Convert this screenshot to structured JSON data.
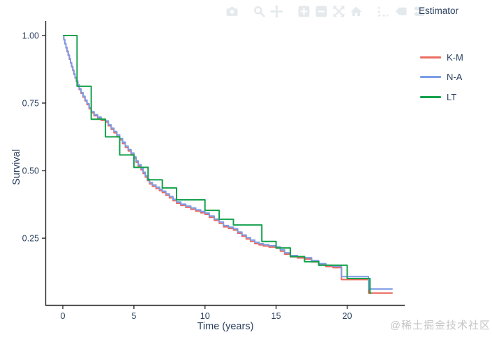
{
  "modebar": {
    "groups": [
      [
        "camera"
      ],
      [
        "magnifier",
        "pan"
      ],
      [
        "zoom-in",
        "zoom-out",
        "autoscale",
        "home"
      ],
      [
        "spikelines",
        "hover-closest",
        "hover-compare"
      ]
    ]
  },
  "legend": {
    "title": "Estimator",
    "items": [
      {
        "label": "K-M",
        "color": "#ec6a5e"
      },
      {
        "label": "N-A",
        "color": "#7d9ce6"
      },
      {
        "label": "LT",
        "color": "#12a14b"
      }
    ]
  },
  "watermark": "@稀土掘金技术社区",
  "chart_data": {
    "type": "line",
    "step_mode": "hv",
    "title": "",
    "xlabel": "Time (years)",
    "ylabel": "Survival",
    "legend_title": "Estimator",
    "grid": false,
    "legend_position": "right",
    "xlim": [
      -1.178,
      24.05
    ],
    "ylim": [
      0.003,
      1.054
    ],
    "xticks": [
      {
        "v": 0,
        "label": "0"
      },
      {
        "v": 5,
        "label": "5"
      },
      {
        "v": 10,
        "label": "10"
      },
      {
        "v": 15,
        "label": "15"
      },
      {
        "v": 20,
        "label": "20"
      }
    ],
    "yticks": [
      {
        "v": 0.25,
        "label": "0.25"
      },
      {
        "v": 0.5,
        "label": "0.50"
      },
      {
        "v": 0.75,
        "label": "0.75"
      },
      {
        "v": 1.0,
        "label": "1.00"
      }
    ],
    "series": [
      {
        "name": "K-M",
        "color": "#ec6a5e",
        "points": [
          [
            0,
            1.0
          ],
          [
            0.07,
            0.984
          ],
          [
            0.14,
            0.969
          ],
          [
            0.22,
            0.954
          ],
          [
            0.3,
            0.94
          ],
          [
            0.38,
            0.926
          ],
          [
            0.46,
            0.912
          ],
          [
            0.54,
            0.898
          ],
          [
            0.62,
            0.884
          ],
          [
            0.7,
            0.87
          ],
          [
            0.78,
            0.856
          ],
          [
            0.86,
            0.843
          ],
          [
            0.95,
            0.83
          ],
          [
            1.05,
            0.815
          ],
          [
            1.15,
            0.8
          ],
          [
            1.28,
            0.786
          ],
          [
            1.42,
            0.772
          ],
          [
            1.56,
            0.758
          ],
          [
            1.7,
            0.744
          ],
          [
            1.85,
            0.729
          ],
          [
            2.0,
            0.714
          ],
          [
            2.2,
            0.703
          ],
          [
            2.45,
            0.694
          ],
          [
            2.7,
            0.686
          ],
          [
            3.0,
            0.68
          ],
          [
            3.2,
            0.666
          ],
          [
            3.4,
            0.653
          ],
          [
            3.6,
            0.64
          ],
          [
            3.8,
            0.627
          ],
          [
            4.0,
            0.614
          ],
          [
            4.2,
            0.6
          ],
          [
            4.4,
            0.586
          ],
          [
            4.6,
            0.573
          ],
          [
            4.8,
            0.56
          ],
          [
            5.0,
            0.546
          ],
          [
            5.15,
            0.531
          ],
          [
            5.3,
            0.517
          ],
          [
            5.5,
            0.503
          ],
          [
            5.65,
            0.489
          ],
          [
            5.8,
            0.476
          ],
          [
            5.95,
            0.463
          ],
          [
            6.1,
            0.451
          ],
          [
            6.3,
            0.442
          ],
          [
            6.55,
            0.434
          ],
          [
            6.8,
            0.426
          ],
          [
            7.0,
            0.419
          ],
          [
            7.25,
            0.409
          ],
          [
            7.5,
            0.399
          ],
          [
            7.75,
            0.389
          ],
          [
            8.0,
            0.379
          ],
          [
            8.3,
            0.371
          ],
          [
            8.65,
            0.364
          ],
          [
            9.0,
            0.357
          ],
          [
            9.35,
            0.35
          ],
          [
            9.7,
            0.344
          ],
          [
            10.0,
            0.338
          ],
          [
            10.3,
            0.327
          ],
          [
            10.65,
            0.316
          ],
          [
            11.0,
            0.305
          ],
          [
            11.3,
            0.292
          ],
          [
            11.65,
            0.286
          ],
          [
            12.0,
            0.28
          ],
          [
            12.3,
            0.268
          ],
          [
            12.6,
            0.257
          ],
          [
            12.9,
            0.247
          ],
          [
            13.2,
            0.238
          ],
          [
            13.5,
            0.23
          ],
          [
            13.8,
            0.225
          ],
          [
            14.1,
            0.221
          ],
          [
            14.5,
            0.217
          ],
          [
            15.0,
            0.213
          ],
          [
            15.3,
            0.202
          ],
          [
            15.6,
            0.191
          ],
          [
            16.0,
            0.181
          ],
          [
            16.5,
            0.177
          ],
          [
            17.0,
            0.173
          ],
          [
            17.5,
            0.162
          ],
          [
            18.0,
            0.151
          ],
          [
            18.5,
            0.145
          ],
          [
            19.0,
            0.141
          ],
          [
            19.6,
            0.097
          ],
          [
            21.5,
            0.047
          ],
          [
            23.2,
            0.047
          ]
        ]
      },
      {
        "name": "N-A",
        "color": "#7d9ce6",
        "points": [
          [
            0,
            1.0
          ],
          [
            0.07,
            0.985
          ],
          [
            0.14,
            0.97
          ],
          [
            0.22,
            0.956
          ],
          [
            0.3,
            0.942
          ],
          [
            0.38,
            0.928
          ],
          [
            0.46,
            0.914
          ],
          [
            0.54,
            0.9
          ],
          [
            0.62,
            0.886
          ],
          [
            0.7,
            0.872
          ],
          [
            0.78,
            0.858
          ],
          [
            0.86,
            0.845
          ],
          [
            0.95,
            0.832
          ],
          [
            1.05,
            0.818
          ],
          [
            1.15,
            0.803
          ],
          [
            1.28,
            0.789
          ],
          [
            1.42,
            0.775
          ],
          [
            1.56,
            0.761
          ],
          [
            1.7,
            0.748
          ],
          [
            1.85,
            0.733
          ],
          [
            2.0,
            0.718
          ],
          [
            2.2,
            0.707
          ],
          [
            2.45,
            0.698
          ],
          [
            2.7,
            0.69
          ],
          [
            3.0,
            0.684
          ],
          [
            3.2,
            0.67
          ],
          [
            3.4,
            0.657
          ],
          [
            3.6,
            0.645
          ],
          [
            3.8,
            0.632
          ],
          [
            4.0,
            0.619
          ],
          [
            4.2,
            0.605
          ],
          [
            4.4,
            0.591
          ],
          [
            4.6,
            0.578
          ],
          [
            4.8,
            0.565
          ],
          [
            5.0,
            0.551
          ],
          [
            5.15,
            0.536
          ],
          [
            5.3,
            0.522
          ],
          [
            5.5,
            0.508
          ],
          [
            5.65,
            0.494
          ],
          [
            5.8,
            0.481
          ],
          [
            5.95,
            0.468
          ],
          [
            6.1,
            0.456
          ],
          [
            6.3,
            0.447
          ],
          [
            6.55,
            0.439
          ],
          [
            6.8,
            0.431
          ],
          [
            7.0,
            0.424
          ],
          [
            7.25,
            0.414
          ],
          [
            7.5,
            0.404
          ],
          [
            7.75,
            0.394
          ],
          [
            8.0,
            0.384
          ],
          [
            8.3,
            0.376
          ],
          [
            8.65,
            0.369
          ],
          [
            9.0,
            0.362
          ],
          [
            9.35,
            0.355
          ],
          [
            9.7,
            0.349
          ],
          [
            10.0,
            0.343
          ],
          [
            10.3,
            0.332
          ],
          [
            10.65,
            0.321
          ],
          [
            11.0,
            0.31
          ],
          [
            11.3,
            0.297
          ],
          [
            11.65,
            0.291
          ],
          [
            12.0,
            0.285
          ],
          [
            12.3,
            0.273
          ],
          [
            12.6,
            0.262
          ],
          [
            12.9,
            0.252
          ],
          [
            13.2,
            0.243
          ],
          [
            13.5,
            0.235
          ],
          [
            13.8,
            0.23
          ],
          [
            14.1,
            0.226
          ],
          [
            14.5,
            0.222
          ],
          [
            15.0,
            0.218
          ],
          [
            15.3,
            0.207
          ],
          [
            15.6,
            0.196
          ],
          [
            16.0,
            0.186
          ],
          [
            16.5,
            0.182
          ],
          [
            17.0,
            0.178
          ],
          [
            17.5,
            0.167
          ],
          [
            18.0,
            0.156
          ],
          [
            18.5,
            0.15
          ],
          [
            19.0,
            0.146
          ],
          [
            19.6,
            0.108
          ],
          [
            21.5,
            0.062
          ],
          [
            23.2,
            0.062
          ]
        ]
      },
      {
        "name": "LT",
        "color": "#12a14b",
        "points": [
          [
            0,
            1.0
          ],
          [
            1,
            0.812
          ],
          [
            2,
            0.69
          ],
          [
            3,
            0.625
          ],
          [
            4,
            0.558
          ],
          [
            5,
            0.512
          ],
          [
            6,
            0.466
          ],
          [
            7,
            0.436
          ],
          [
            8,
            0.392
          ],
          [
            10,
            0.353
          ],
          [
            11,
            0.32
          ],
          [
            12,
            0.299
          ],
          [
            14,
            0.238
          ],
          [
            15,
            0.214
          ],
          [
            16,
            0.182
          ],
          [
            17,
            0.163
          ],
          [
            18,
            0.15
          ],
          [
            20,
            0.101
          ],
          [
            21.6,
            0.047
          ],
          [
            21.7,
            0.047
          ]
        ]
      }
    ]
  }
}
